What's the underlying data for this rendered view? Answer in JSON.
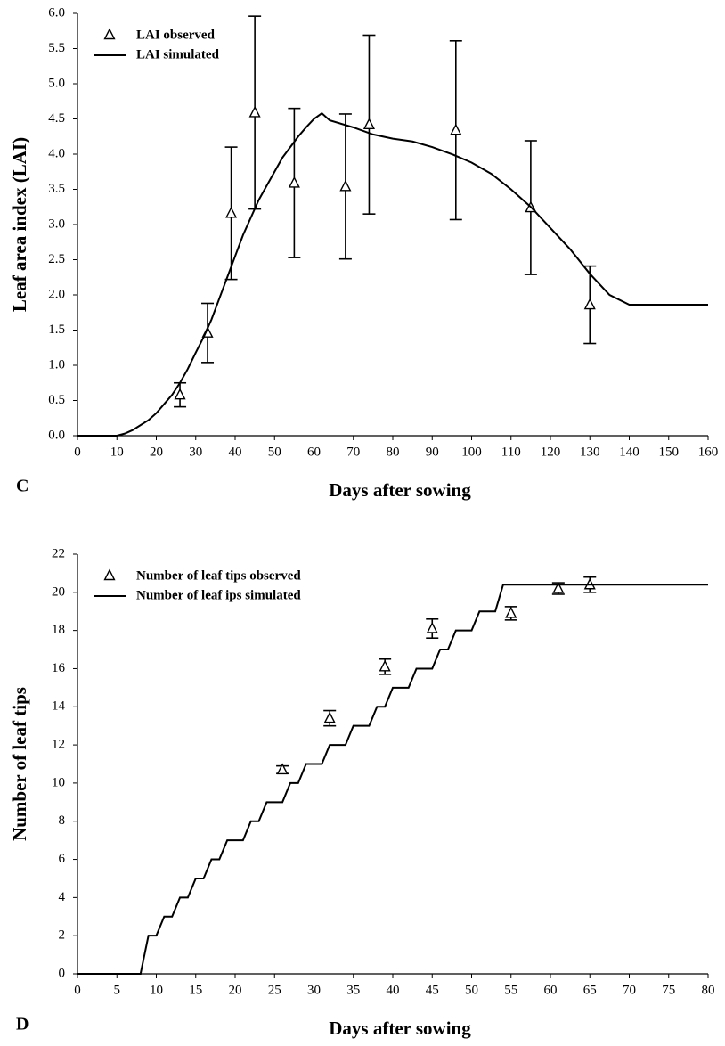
{
  "chart_data": [
    {
      "type": "line",
      "panel_label": "C",
      "xlabel": "Days after sowing",
      "ylabel": "Leaf area index (LAI)",
      "xlim": [
        0,
        160
      ],
      "xticks": [
        0,
        10,
        20,
        30,
        40,
        50,
        60,
        70,
        80,
        90,
        100,
        110,
        120,
        130,
        140,
        150,
        160
      ],
      "ylim": [
        0,
        6
      ],
      "yticks": [
        {
          "value": 0,
          "label": "0.0"
        },
        0.5,
        {
          "value": 1,
          "label": "1.0"
        },
        1.5,
        {
          "value": 2,
          "label": "2.0"
        },
        2.5,
        {
          "value": 3,
          "label": "3.0"
        },
        3.5,
        {
          "value": 4,
          "label": "4.0"
        },
        4.5,
        {
          "value": 5,
          "label": "5.0"
        },
        5.5,
        {
          "value": 6,
          "label": "6.0"
        }
      ],
      "grid": false,
      "legend": "upper left",
      "series": [
        {
          "name": "LAI observed",
          "color": "#000000",
          "marker": "triangle",
          "x": [
            26,
            33,
            39,
            45,
            55,
            68,
            74,
            96,
            115,
            130
          ],
          "values": [
            0.58,
            1.46,
            3.16,
            4.59,
            3.59,
            3.54,
            4.42,
            4.34,
            3.24,
            1.86
          ],
          "errors": [
            0.17,
            0.42,
            0.94,
            1.37,
            1.06,
            1.03,
            1.27,
            1.27,
            0.95,
            0.55
          ]
        },
        {
          "name": "LAI simulated",
          "color": "#000000",
          "marker": "none",
          "x": [
            0,
            10,
            12,
            14,
            16,
            18,
            20,
            22,
            24,
            26,
            28,
            30,
            32,
            34,
            36,
            38,
            40,
            42,
            44,
            46,
            48,
            50,
            52,
            54,
            56,
            58,
            60,
            62,
            64,
            70,
            75,
            80,
            85,
            90,
            95,
            100,
            105,
            110,
            115,
            120,
            125,
            130,
            135,
            140,
            160
          ],
          "values": [
            0,
            0,
            0.03,
            0.08,
            0.15,
            0.22,
            0.32,
            0.45,
            0.58,
            0.75,
            0.95,
            1.18,
            1.4,
            1.65,
            1.95,
            2.25,
            2.55,
            2.85,
            3.1,
            3.35,
            3.55,
            3.75,
            3.95,
            4.1,
            4.25,
            4.38,
            4.5,
            4.58,
            4.48,
            4.38,
            4.28,
            4.22,
            4.18,
            4.1,
            4.0,
            3.88,
            3.72,
            3.5,
            3.25,
            2.95,
            2.65,
            2.3,
            2.0,
            1.86,
            1.86
          ]
        }
      ]
    },
    {
      "type": "line",
      "panel_label": "D",
      "xlabel": "Days after sowing",
      "ylabel": "Number of leaf tips",
      "xlim": [
        0,
        80
      ],
      "xticks": [
        0,
        5,
        10,
        15,
        20,
        25,
        30,
        35,
        40,
        45,
        50,
        55,
        60,
        65,
        70,
        75,
        80
      ],
      "ylim": [
        0,
        22
      ],
      "yticks": [
        0,
        2,
        4,
        6,
        8,
        10,
        12,
        14,
        16,
        18,
        20,
        22
      ],
      "grid": false,
      "legend": "upper left",
      "series": [
        {
          "name": "Number of leaf tips observed",
          "color": "#000000",
          "marker": "triangle",
          "x": [
            26,
            32,
            39,
            45,
            55,
            61,
            65
          ],
          "values": [
            10.7,
            13.4,
            16.1,
            18.1,
            18.9,
            20.2,
            20.4
          ],
          "errors": [
            0.2,
            0.4,
            0.4,
            0.5,
            0.35,
            0.3,
            0.4
          ]
        },
        {
          "name": "Number of leaf ips simulated",
          "color": "#000000",
          "marker": "none",
          "x": [
            0,
            8,
            9,
            10,
            11,
            12,
            13,
            14,
            15,
            16,
            17,
            18,
            19,
            21,
            22,
            23,
            24,
            26,
            27,
            28,
            29,
            31,
            32,
            34,
            35,
            37,
            38,
            39,
            40,
            42,
            43,
            45,
            46,
            47,
            48,
            50,
            51,
            53,
            54,
            80
          ],
          "values": [
            0,
            0,
            2,
            2,
            3,
            3,
            4,
            4,
            5,
            5,
            6,
            6,
            7,
            7,
            8,
            8,
            9,
            9,
            10,
            10,
            11,
            11,
            12,
            12,
            13,
            13,
            14,
            14,
            15,
            15,
            16,
            16,
            17,
            17,
            18,
            18,
            19,
            19,
            20.4,
            20.4
          ]
        }
      ]
    }
  ]
}
